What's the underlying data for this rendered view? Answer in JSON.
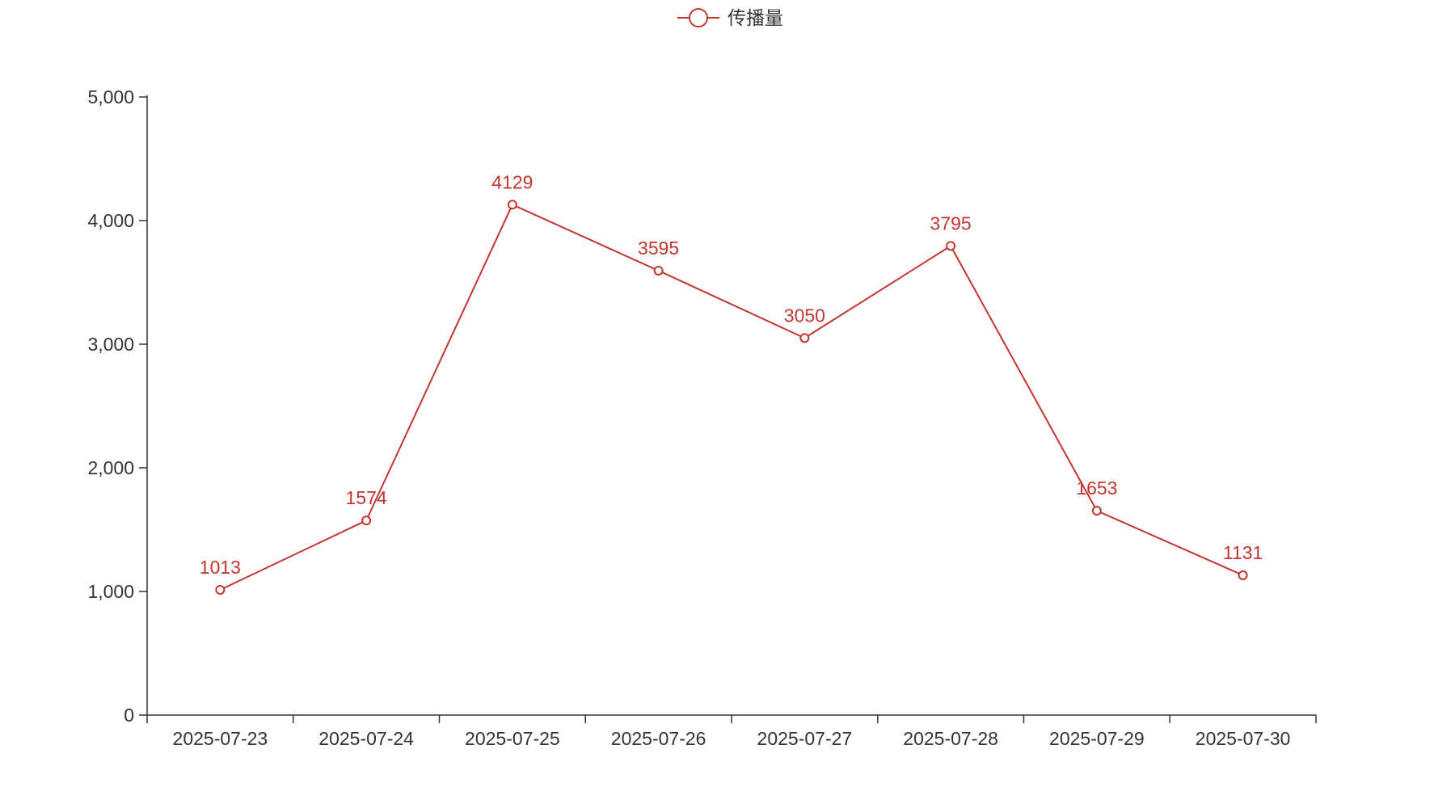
{
  "chart_data": {
    "type": "line",
    "categories": [
      "2025-07-23",
      "2025-07-24",
      "2025-07-25",
      "2025-07-26",
      "2025-07-27",
      "2025-07-28",
      "2025-07-29",
      "2025-07-30"
    ],
    "series": [
      {
        "name": "传播量",
        "values": [
          1013,
          1574,
          4129,
          3595,
          3050,
          3795,
          1653,
          1131
        ],
        "color": "#c23531"
      }
    ],
    "ylim": [
      0,
      5000
    ],
    "y_ticks": [
      0,
      1000,
      2000,
      3000,
      4000,
      5000
    ],
    "y_tick_labels": [
      "0",
      "1,000",
      "2,000",
      "3,000",
      "4,000",
      "5,000"
    ],
    "data_labels": [
      "1013",
      "1574",
      "4129",
      "3595",
      "3050",
      "3795",
      "1653",
      "1131"
    ],
    "legend": {
      "position": "top-center",
      "marker": "line-circle"
    },
    "grid": false
  }
}
